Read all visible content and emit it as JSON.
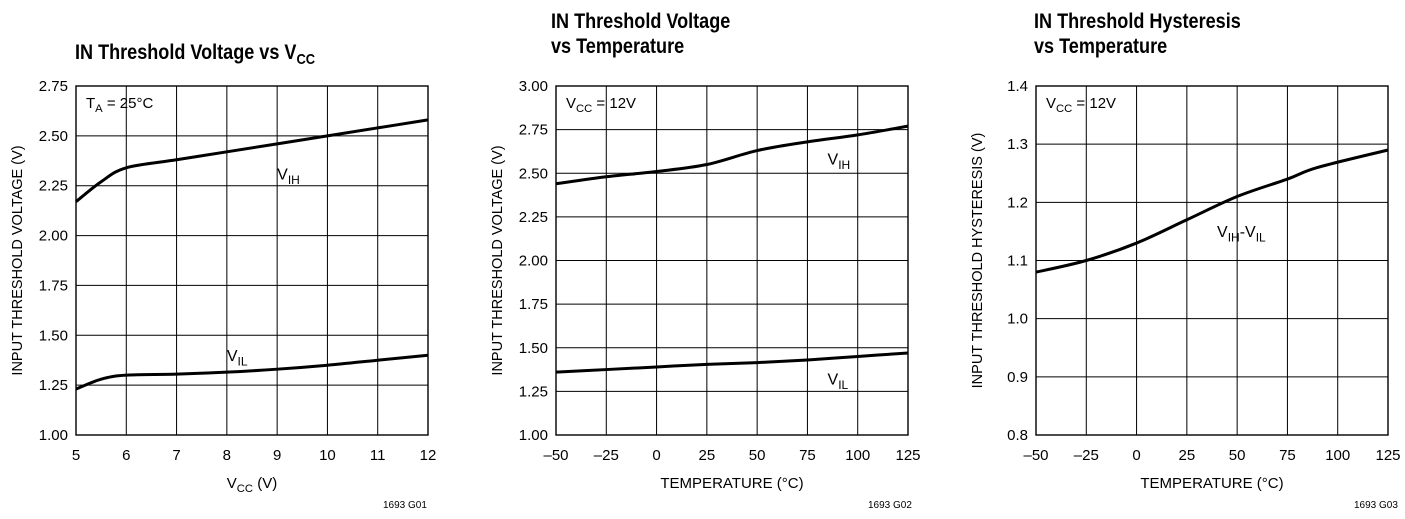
{
  "charts": [
    {
      "title_lines": [
        "IN Threshold Voltage vs V",
        "CC"
      ],
      "title_sub_inline": true,
      "figure_code": "1693 G01"
    },
    {
      "title_lines": [
        "IN Threshold Voltage",
        "vs Temperature"
      ],
      "title_sub_inline": false,
      "figure_code": "1693 G02"
    },
    {
      "title_lines": [
        "IN Threshold Hysteresis",
        "vs Temperature"
      ],
      "title_sub_inline": false,
      "figure_code": "1693 G03"
    }
  ],
  "chart_data": [
    {
      "type": "line",
      "title": "IN Threshold Voltage vs VCC",
      "xlabel": "V",
      "xlabel_sub": "CC",
      "xlabel_suffix": " (V)",
      "ylabel": "INPUT THRESHOLD VOLTAGE (V)",
      "xlim": [
        5,
        12
      ],
      "ylim": [
        1.0,
        2.75
      ],
      "x_ticks": [
        5,
        6,
        7,
        8,
        9,
        10,
        11,
        12
      ],
      "x_tick_labels": [
        "5",
        "6",
        "7",
        "8",
        "9",
        "10",
        "11",
        "12"
      ],
      "y_ticks": [
        1.0,
        1.25,
        1.5,
        1.75,
        2.0,
        2.25,
        2.5,
        2.75
      ],
      "y_tick_labels": [
        "1.00",
        "1.25",
        "1.50",
        "1.75",
        "2.00",
        "2.25",
        "2.50",
        "2.75"
      ],
      "grid": true,
      "condition": {
        "text": "T",
        "sub": "A",
        "rest": " = 25°C"
      },
      "series": [
        {
          "name": "VIH",
          "label": "V",
          "label_sub": "IH",
          "label_at": [
            9,
            2.28
          ],
          "points": [
            [
              5,
              2.17
            ],
            [
              5.5,
              2.27
            ],
            [
              6,
              2.34
            ],
            [
              7,
              2.38
            ],
            [
              8,
              2.42
            ],
            [
              9,
              2.46
            ],
            [
              10,
              2.5
            ],
            [
              11,
              2.54
            ],
            [
              12,
              2.58
            ]
          ]
        },
        {
          "name": "VIL",
          "label": "V",
          "label_sub": "IL",
          "label_at": [
            8,
            1.37
          ],
          "points": [
            [
              5,
              1.23
            ],
            [
              5.5,
              1.28
            ],
            [
              6,
              1.3
            ],
            [
              7,
              1.305
            ],
            [
              8,
              1.315
            ],
            [
              9,
              1.33
            ],
            [
              10,
              1.35
            ],
            [
              11,
              1.375
            ],
            [
              12,
              1.4
            ]
          ]
        }
      ]
    },
    {
      "type": "line",
      "title": "IN Threshold Voltage vs Temperature",
      "xlabel": "TEMPERATURE (°C)",
      "ylabel": "INPUT THRESHOLD VOLTAGE (V)",
      "xlim": [
        -50,
        125
      ],
      "ylim": [
        1.0,
        3.0
      ],
      "x_ticks": [
        -50,
        -25,
        0,
        25,
        50,
        75,
        100,
        125
      ],
      "x_tick_labels": [
        "–50",
        "–25",
        "0",
        "25",
        "50",
        "75",
        "100",
        "125"
      ],
      "y_ticks": [
        1.0,
        1.25,
        1.5,
        1.75,
        2.0,
        2.25,
        2.5,
        2.75,
        3.0
      ],
      "y_tick_labels": [
        "1.00",
        "1.25",
        "1.50",
        "1.75",
        "2.00",
        "2.25",
        "2.50",
        "2.75",
        "3.00"
      ],
      "grid": true,
      "condition": {
        "text": "V",
        "sub": "CC",
        "rest": " = 12V"
      },
      "series": [
        {
          "name": "VIH",
          "label": "V",
          "label_sub": "IH",
          "label_at": [
            85,
            2.55
          ],
          "points": [
            [
              -50,
              2.44
            ],
            [
              -25,
              2.48
            ],
            [
              0,
              2.51
            ],
            [
              25,
              2.55
            ],
            [
              50,
              2.63
            ],
            [
              75,
              2.68
            ],
            [
              100,
              2.72
            ],
            [
              125,
              2.77
            ]
          ]
        },
        {
          "name": "VIL",
          "label": "V",
          "label_sub": "IL",
          "label_at": [
            85,
            1.29
          ],
          "points": [
            [
              -50,
              1.36
            ],
            [
              -25,
              1.375
            ],
            [
              0,
              1.39
            ],
            [
              25,
              1.405
            ],
            [
              50,
              1.415
            ],
            [
              75,
              1.43
            ],
            [
              100,
              1.45
            ],
            [
              125,
              1.47
            ]
          ]
        }
      ]
    },
    {
      "type": "line",
      "title": "IN Threshold Hysteresis vs Temperature",
      "xlabel": "TEMPERATURE (°C)",
      "ylabel": "INPUT THRESHOLD HYSTERESIS (V)",
      "xlim": [
        -50,
        125
      ],
      "ylim": [
        0.8,
        1.4
      ],
      "x_ticks": [
        -50,
        -25,
        0,
        25,
        50,
        75,
        100,
        125
      ],
      "x_tick_labels": [
        "–50",
        "–25",
        "0",
        "25",
        "50",
        "75",
        "100",
        "125"
      ],
      "y_ticks": [
        0.8,
        0.9,
        1.0,
        1.1,
        1.2,
        1.3,
        1.4
      ],
      "y_tick_labels": [
        "0.8",
        "0.9",
        "1.0",
        "1.1",
        "1.2",
        "1.3",
        "1.4"
      ],
      "grid": true,
      "condition": {
        "text": "V",
        "sub": "CC",
        "rest": " = 12V"
      },
      "series": [
        {
          "name": "VIH-VIL",
          "label": "V",
          "label_sub": "IH",
          "label_mid": "-V",
          "label_sub2": "IL",
          "label_at": [
            40,
            1.14
          ],
          "points": [
            [
              -50,
              1.08
            ],
            [
              -25,
              1.1
            ],
            [
              0,
              1.13
            ],
            [
              25,
              1.17
            ],
            [
              50,
              1.21
            ],
            [
              75,
              1.24
            ],
            [
              90,
              1.26
            ],
            [
              125,
              1.29
            ]
          ]
        }
      ]
    }
  ]
}
